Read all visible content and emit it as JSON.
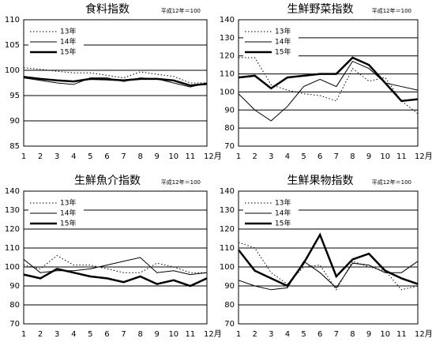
{
  "chart_data": [
    {
      "type": "line",
      "title": "食料指数",
      "subtitle": "平成12年＝100",
      "categories": [
        "1",
        "2",
        "3",
        "4",
        "5",
        "6",
        "7",
        "8",
        "9",
        "10",
        "11",
        "12月"
      ],
      "series": [
        {
          "name": "13年",
          "color": "#000000",
          "style": "dotted",
          "width": 1,
          "values": [
            100.5,
            100.2,
            99.8,
            99.5,
            99.5,
            99.0,
            98.5,
            99.7,
            99.2,
            98.8,
            97.5,
            97.5
          ]
        },
        {
          "name": "14年",
          "color": "#000000",
          "style": "solid",
          "width": 1,
          "values": [
            98.5,
            98.0,
            97.5,
            97.2,
            98.5,
            98.5,
            97.8,
            98.5,
            98.3,
            97.5,
            96.7,
            97.5
          ]
        },
        {
          "name": "15年",
          "color": "#000000",
          "style": "solid",
          "width": 2.5,
          "values": [
            98.7,
            98.3,
            98.0,
            97.8,
            98.3,
            98.2,
            98.0,
            98.3,
            98.3,
            98.0,
            97.0,
            97.3
          ]
        }
      ],
      "ylim": [
        85,
        110
      ],
      "yticks": [
        85,
        90,
        95,
        100,
        105,
        110
      ],
      "grid": true
    },
    {
      "type": "line",
      "title": "生鮮野菜指数",
      "subtitle": "平成12年＝100",
      "categories": [
        "1",
        "2",
        "3",
        "4",
        "5",
        "6",
        "7",
        "8",
        "9",
        "10",
        "11",
        "12月"
      ],
      "series": [
        {
          "name": "13年",
          "color": "#000000",
          "style": "dotted",
          "width": 1,
          "values": [
            119,
            119,
            104,
            101,
            99,
            98,
            95,
            113,
            106,
            108,
            95,
            88
          ]
        },
        {
          "name": "14年",
          "color": "#000000",
          "style": "solid",
          "width": 1,
          "values": [
            99,
            90,
            84,
            92,
            103,
            107,
            103,
            117,
            113,
            105,
            103,
            101
          ]
        },
        {
          "name": "15年",
          "color": "#000000",
          "style": "solid",
          "width": 2.5,
          "values": [
            108,
            109,
            102,
            108,
            109,
            110,
            110,
            119,
            115,
            105,
            95,
            96
          ]
        }
      ],
      "ylim": [
        70,
        140
      ],
      "yticks": [
        70,
        80,
        90,
        100,
        110,
        120,
        130,
        140
      ],
      "grid": true
    },
    {
      "type": "line",
      "title": "生鮮魚介指数",
      "subtitle": "平成12年＝100",
      "categories": [
        "1",
        "2",
        "3",
        "4",
        "5",
        "6",
        "7",
        "8",
        "9",
        "10",
        "11",
        "12月"
      ],
      "series": [
        {
          "name": "13年",
          "color": "#000000",
          "style": "dotted",
          "width": 1,
          "values": [
            101,
            99,
            106,
            101,
            101,
            99,
            97,
            97,
            102,
            100,
            97,
            97
          ]
        },
        {
          "name": "14年",
          "color": "#000000",
          "style": "solid",
          "width": 1,
          "values": [
            104,
            97,
            98,
            98,
            99,
            101,
            103,
            105,
            97,
            98,
            96,
            97
          ]
        },
        {
          "name": "15年",
          "color": "#000000",
          "style": "solid",
          "width": 2.5,
          "values": [
            96,
            94,
            99,
            97,
            95,
            94,
            92,
            95,
            91,
            93,
            90,
            94
          ]
        }
      ],
      "ylim": [
        70,
        140
      ],
      "yticks": [
        70,
        80,
        90,
        100,
        110,
        120,
        130,
        140
      ],
      "grid": true
    },
    {
      "type": "line",
      "title": "生鮮果物指数",
      "subtitle": "平成12年＝100",
      "categories": [
        "1",
        "2",
        "3",
        "4",
        "5",
        "6",
        "7",
        "8",
        "9",
        "10",
        "11",
        "12月"
      ],
      "series": [
        {
          "name": "13年",
          "color": "#000000",
          "style": "dotted",
          "width": 1,
          "values": [
            113,
            110,
            97,
            91,
            100,
            101,
            88,
            103,
            100,
            98,
            88,
            90
          ]
        },
        {
          "name": "14年",
          "color": "#000000",
          "style": "solid",
          "width": 1,
          "values": [
            93,
            90,
            88,
            89,
            103,
            97,
            89,
            102,
            101,
            97,
            97,
            103
          ]
        },
        {
          "name": "15年",
          "color": "#000000",
          "style": "solid",
          "width": 2.5,
          "values": [
            109,
            98,
            94,
            90,
            102,
            117,
            95,
            104,
            107,
            98,
            94,
            91
          ]
        }
      ],
      "ylim": [
        70,
        140
      ],
      "yticks": [
        70,
        80,
        90,
        100,
        110,
        120,
        130,
        140
      ],
      "grid": true
    }
  ]
}
